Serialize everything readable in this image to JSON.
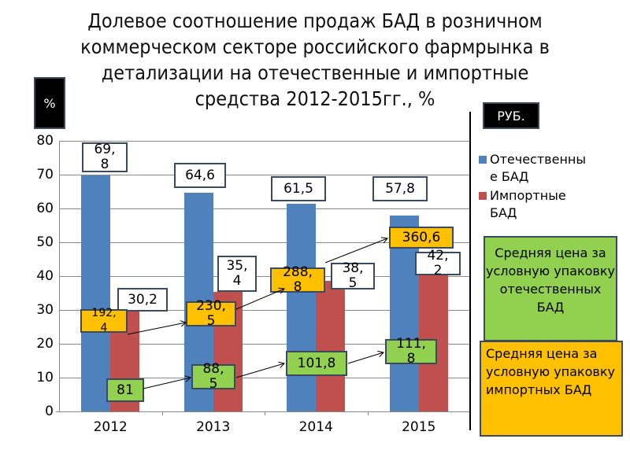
{
  "title": "Долевое соотношение продаж БАД в розничном коммерческом секторе российского фармрынка в детализации на отечественные и импортные средства 2012-2015гг., %",
  "title_lines": [
    "Долевое соотношение продаж БАД в розничном",
    "коммерческом секторе российского фармрынка в",
    "детализации на отечественные и импортные",
    "средства 2012-2015гг., %"
  ],
  "left_unit": "%",
  "right_unit": "РУБ.",
  "legend": [
    {
      "label": "Отечественны е БАД",
      "color": "#4f81bd"
    },
    {
      "label": "Импортные БАД",
      "color": "#c0504d"
    }
  ],
  "notes": {
    "domestic_price": "Средняя цена за условную упаковку отечественных БАД",
    "import_price": "Средняя цена за условную упаковку импортных БАД"
  },
  "colors": {
    "domestic": "#4f81bd",
    "import": "#c0504d",
    "domestic_price_box": "#92d050",
    "import_price_box": "#ffc000"
  },
  "chart_data": {
    "type": "bar",
    "title": "Долевое соотношение продаж БАД в розничном коммерческом секторе российского фармрынка в детализации на отечественные и импортные средства 2012-2015гг., %",
    "xlabel": "",
    "ylabel": "%",
    "ylim": [
      0,
      80
    ],
    "yticks": [
      0,
      10,
      20,
      30,
      40,
      50,
      60,
      70,
      80
    ],
    "grid": true,
    "legend_position": "right",
    "categories": [
      "2012",
      "2013",
      "2014",
      "2015"
    ],
    "series": [
      {
        "name": "Отечественные БАД",
        "values": [
          69.8,
          64.6,
          61.5,
          57.8
        ],
        "labels": [
          "69,8",
          "64,6",
          "61,5",
          "57,8"
        ]
      },
      {
        "name": "Импортные БАД",
        "values": [
          30.2,
          35.4,
          38.5,
          42.2
        ],
        "labels": [
          "30,2",
          "35,4",
          "38,5",
          "42,2"
        ]
      }
    ],
    "annotations": {
      "unit": "РУБ.",
      "avg_price_domestic": {
        "name": "Средняя цена за условную упаковку отечественных БАД",
        "values": [
          81,
          88.5,
          101.8,
          111.8
        ],
        "labels": [
          "81",
          "88,5",
          "101,8",
          "111,8"
        ]
      },
      "avg_price_import": {
        "name": "Средняя цена за условную упаковку импортных БАД",
        "values": [
          192.4,
          230.5,
          288.8,
          360.6
        ],
        "labels": [
          "192,4",
          "230,5",
          "288,8",
          "360,6"
        ]
      }
    }
  },
  "display_labels": {
    "domestic": [
      "69,\n8",
      "64,6",
      "61,5",
      "57,8"
    ],
    "import": [
      "30,2",
      "35,\n4",
      "38,\n5",
      "42,\n2"
    ],
    "price_domestic": [
      "81",
      "88,\n5",
      "101,8",
      "111,\n8"
    ],
    "price_import": [
      "192,\n4",
      "230,\n5",
      "288,\n8",
      "360,6"
    ]
  }
}
